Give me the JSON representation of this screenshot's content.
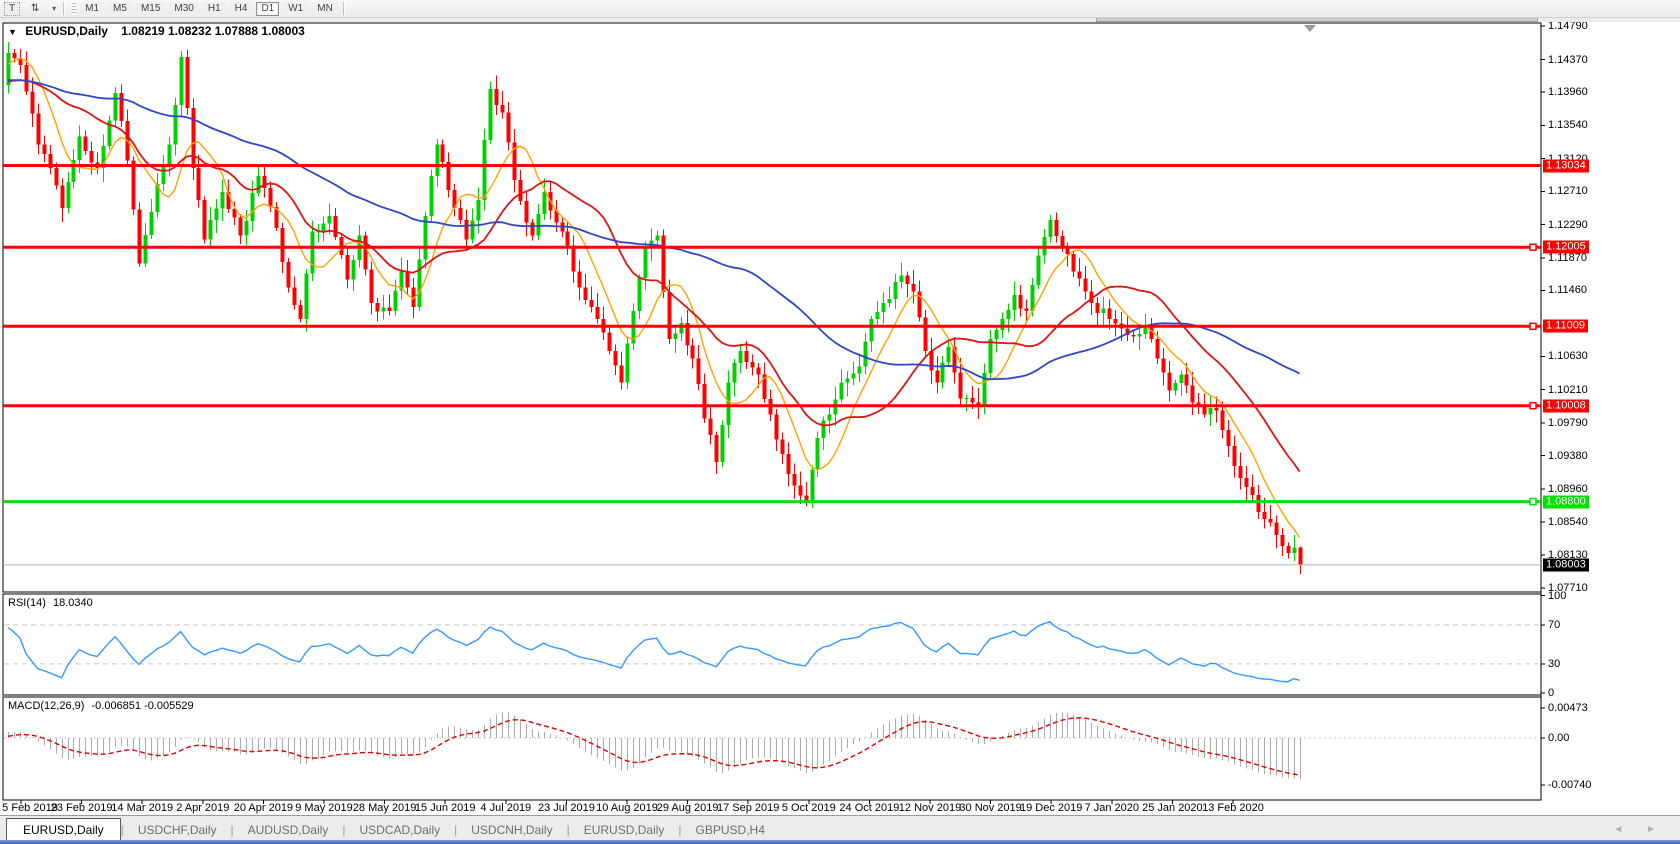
{
  "toolbar": {
    "text_tool_glyph": "T",
    "crosshair_tool_glyph": "⇅",
    "dropdown_glyph": "▾",
    "timeframes": [
      {
        "label": "M1",
        "active": false
      },
      {
        "label": "M5",
        "active": false
      },
      {
        "label": "M15",
        "active": false
      },
      {
        "label": "M30",
        "active": false
      },
      {
        "label": "H1",
        "active": false
      },
      {
        "label": "H4",
        "active": false
      },
      {
        "label": "D1",
        "active": true
      },
      {
        "label": "W1",
        "active": false
      },
      {
        "label": "MN",
        "active": false
      }
    ]
  },
  "chart_title": {
    "dropdown_glyph": "▼",
    "symbol": "EURUSD,Daily",
    "ohlc_text": "1.08219 1.08232 1.07888 1.08003"
  },
  "rsi_panel": {
    "name": "RSI(14)",
    "value": "18.0340"
  },
  "macd_panel": {
    "name": "MACD(12,26,9)",
    "values": "-0.006851 -0.005529"
  },
  "tabs": {
    "items": [
      {
        "label": "EURUSD,Daily",
        "active": true
      },
      {
        "label": "USDCHF,Daily",
        "active": false
      },
      {
        "label": "AUDUSD,Daily",
        "active": false
      },
      {
        "label": "USDCAD,Daily",
        "active": false
      },
      {
        "label": "USDCNH,Daily",
        "active": false
      },
      {
        "label": "EURUSD,Daily",
        "active": false
      },
      {
        "label": "GBPUSD,H4",
        "active": false
      }
    ],
    "nav_left": "◄",
    "nav_right": "►"
  },
  "colors": {
    "candle_up": "#00d000",
    "candle_down": "#ff0000",
    "ma_fast": "#ffa200",
    "ma_mid": "#dc1414",
    "ma_slow": "#2e46c8",
    "level_red": "#ff0000",
    "level_green": "#00e100",
    "rsi_line": "#3399ff",
    "macd_hist": "#ababab",
    "macd_signal": "#e00000",
    "current_price_line": "#b4b4b4",
    "current_chip_bg": "#000000",
    "axis_text": "#000000",
    "panel_border": "#000000",
    "dashed_level": "#c8c8c8"
  },
  "chart_data": {
    "type": "candlestick",
    "symbol": "EURUSD",
    "timeframe": "Daily",
    "title_ohlc": {
      "open": 1.08219,
      "high": 1.08232,
      "low": 1.07888,
      "close": 1.08003
    },
    "candle_count": 218,
    "close_anchors": [
      [
        0,
        1.1445
      ],
      [
        2,
        1.143
      ],
      [
        5,
        1.133
      ],
      [
        7,
        1.13
      ],
      [
        9,
        1.125
      ],
      [
        12,
        1.134
      ],
      [
        15,
        1.13
      ],
      [
        18,
        1.1395
      ],
      [
        20,
        1.131
      ],
      [
        22,
        1.118
      ],
      [
        25,
        1.128
      ],
      [
        27,
        1.133
      ],
      [
        29,
        1.144
      ],
      [
        31,
        1.13
      ],
      [
        33,
        1.121
      ],
      [
        36,
        1.127
      ],
      [
        39,
        1.1215
      ],
      [
        42,
        1.129
      ],
      [
        45,
        1.1225
      ],
      [
        47,
        1.115
      ],
      [
        49,
        1.111
      ],
      [
        51,
        1.122
      ],
      [
        54,
        1.124
      ],
      [
        57,
        1.116
      ],
      [
        59,
        1.1215
      ],
      [
        61,
        1.113
      ],
      [
        64,
        1.112
      ],
      [
        66,
        1.117
      ],
      [
        68,
        1.1125
      ],
      [
        70,
        1.124
      ],
      [
        72,
        1.133
      ],
      [
        75,
        1.125
      ],
      [
        77,
        1.121
      ],
      [
        79,
        1.126
      ],
      [
        81,
        1.14
      ],
      [
        83,
        1.137
      ],
      [
        85,
        1.1285
      ],
      [
        88,
        1.1215
      ],
      [
        90,
        1.127
      ],
      [
        93,
        1.122
      ],
      [
        96,
        1.115
      ],
      [
        99,
        1.111
      ],
      [
        101,
        1.107
      ],
      [
        103,
        1.103
      ],
      [
        105,
        1.112
      ],
      [
        107,
        1.12
      ],
      [
        109,
        1.1215
      ],
      [
        111,
        1.1085
      ],
      [
        113,
        1.1105
      ],
      [
        115,
        1.106
      ],
      [
        117,
        1.0985
      ],
      [
        119,
        1.093
      ],
      [
        121,
        1.103
      ],
      [
        123,
        1.107
      ],
      [
        126,
        1.104
      ],
      [
        128,
        1.099
      ],
      [
        130,
        1.094
      ],
      [
        132,
        1.09
      ],
      [
        134,
        1.088
      ],
      [
        136,
        1.096
      ],
      [
        138,
        1.099
      ],
      [
        140,
        1.103
      ],
      [
        143,
        1.105
      ],
      [
        145,
        1.111
      ],
      [
        147,
        1.113
      ],
      [
        150,
        1.1165
      ],
      [
        152,
        1.1145
      ],
      [
        154,
        1.107
      ],
      [
        156,
        1.103
      ],
      [
        158,
        1.1075
      ],
      [
        160,
        1.101
      ],
      [
        163,
        1.1
      ],
      [
        165,
        1.1085
      ],
      [
        167,
        1.111
      ],
      [
        169,
        1.114
      ],
      [
        171,
        1.112
      ],
      [
        173,
        1.119
      ],
      [
        175,
        1.1235
      ],
      [
        177,
        1.12
      ],
      [
        179,
        1.117
      ],
      [
        182,
        1.113
      ],
      [
        185,
        1.111
      ],
      [
        188,
        1.109
      ],
      [
        191,
        1.11
      ],
      [
        193,
        1.106
      ],
      [
        195,
        1.102
      ],
      [
        197,
        1.104
      ],
      [
        199,
        1.1005
      ],
      [
        201,
        1.099
      ],
      [
        203,
        1.0995
      ],
      [
        205,
        1.095
      ],
      [
        207,
        1.091
      ],
      [
        209,
        1.0888
      ],
      [
        211,
        1.0858
      ],
      [
        213,
        1.0838
      ],
      [
        215,
        1.0815
      ],
      [
        216,
        1.0822
      ],
      [
        217,
        1.08003
      ]
    ],
    "spike": {
      "index": 29,
      "high": 1.1448
    },
    "pre_history": {
      "length": 60,
      "base": 1.1408,
      "amp": 0.0026
    },
    "moving_averages": [
      {
        "period": 8,
        "color_key": "ma_fast"
      },
      {
        "period": 21,
        "color_key": "ma_mid"
      },
      {
        "period": 55,
        "color_key": "ma_slow"
      }
    ],
    "levels": [
      {
        "price": 1.13034,
        "label": "1.13034",
        "color_key": "level_red",
        "handle": false
      },
      {
        "price": 1.12005,
        "label": "1.12005",
        "color_key": "level_red",
        "handle": true
      },
      {
        "price": 1.11009,
        "label": "1.11009",
        "color_key": "level_red",
        "handle": true
      },
      {
        "price": 1.10008,
        "label": "1.10008",
        "color_key": "level_red",
        "handle": true
      },
      {
        "price": 1.088,
        "label": "1.08800",
        "color_key": "level_green",
        "handle": true
      }
    ],
    "current_price": {
      "value": 1.08003,
      "label": "1.08003"
    },
    "price_axis_labels": [
      "1.14790",
      "1.14370",
      "1.13960",
      "1.13540",
      "1.13120",
      "1.12710",
      "1.12290",
      "1.11870",
      "1.11460",
      "1.10630",
      "1.10210",
      "1.09790",
      "1.09380",
      "1.08960",
      "1.08540",
      "1.08130",
      "1.07710"
    ],
    "price_range": {
      "top": 1.1483,
      "bottom": 1.07661
    },
    "rsi": {
      "period": 14,
      "last_value": 18.034,
      "axis_labels": [
        "100",
        "70",
        "30",
        "0"
      ],
      "dashed_levels": [
        70,
        30
      ]
    },
    "macd": {
      "fast": 12,
      "slow": 26,
      "signal": 9,
      "last_macd": -0.006851,
      "last_signal": -0.005529,
      "axis_labels": [
        "0.00473",
        "0.00",
        "-0.00740"
      ]
    },
    "date_labels": [
      "5 Feb 2019",
      "23 Feb 2019",
      "14 Mar 2019",
      "2 Apr 2019",
      "20 Apr 2019",
      "9 May 2019",
      "28 May 2019",
      "15 Jun 2019",
      "4 Jul 2019",
      "23 Jul 2019",
      "10 Aug 2019",
      "29 Aug 2019",
      "17 Sep 2019",
      "5 Oct 2019",
      "24 Oct 2019",
      "12 Nov 2019",
      "30 Nov 2019",
      "19 Dec 2019",
      "7 Jan 2020",
      "25 Jan 2020",
      "13 Feb 2020"
    ]
  }
}
